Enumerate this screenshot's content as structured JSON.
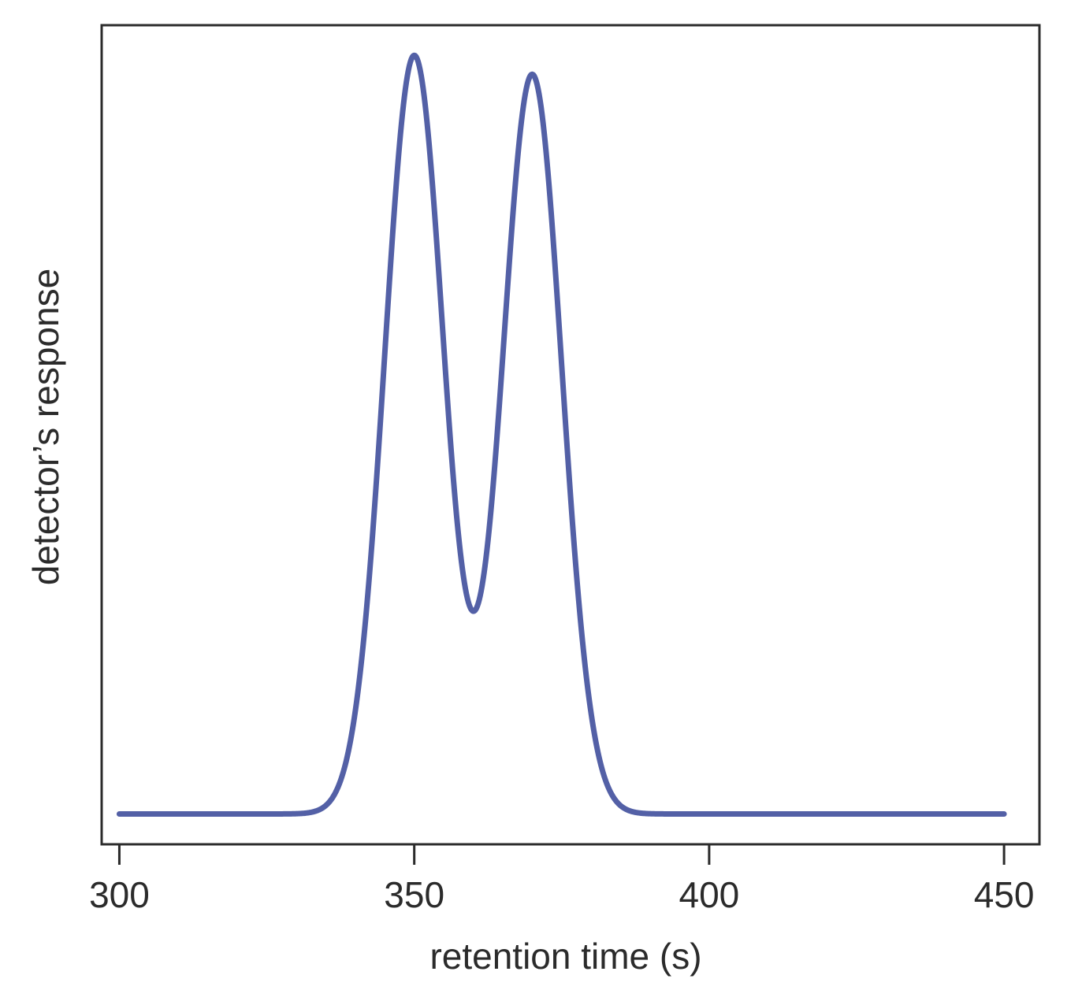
{
  "chart_data": {
    "type": "line",
    "title": "",
    "xlabel": "retention time (s)",
    "ylabel": "detector’s response",
    "xlim": [
      297,
      456
    ],
    "xticks": [
      300,
      350,
      400,
      450
    ],
    "xtick_labels": [
      "300",
      "350",
      "400",
      "450"
    ],
    "y_ticks_shown": false,
    "grid": false,
    "legend": "none",
    "line_color": "#5360a6",
    "series": [
      {
        "model": "sum of two gaussian peaks on flat baseline",
        "peaks": [
          {
            "center": 350,
            "height": 1.0,
            "sigma": 5
          },
          {
            "center": 370,
            "height": 0.975,
            "sigma": 5
          }
        ],
        "baseline": 0,
        "x_range": [
          300,
          450
        ],
        "ylim": [
          -0.04,
          1.04
        ]
      }
    ]
  }
}
